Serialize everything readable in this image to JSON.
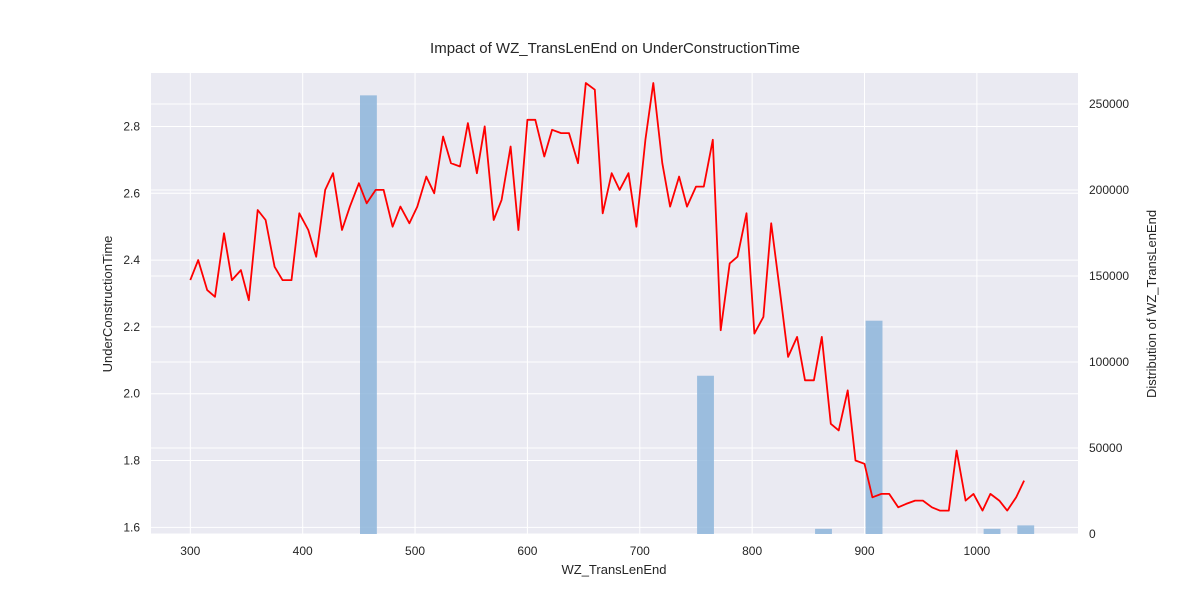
{
  "chart_data": {
    "type": "line",
    "title": "Impact of WZ_TransLenEnd on UnderConstructionTime",
    "xlabel": "WZ_TransLenEnd",
    "ylabel": "UnderConstructionTime",
    "y2label": "Distribution of WZ_TransLenEnd",
    "xlim": [
      265,
      1090
    ],
    "ylim": [
      1.58,
      2.96
    ],
    "y2lim": [
      0,
      268000
    ],
    "x_ticks": [
      300,
      400,
      500,
      600,
      700,
      800,
      900,
      1000
    ],
    "y_ticks": [
      1.6,
      1.8,
      2.0,
      2.2,
      2.4,
      2.6,
      2.8
    ],
    "y_tick_labels": [
      "1.6",
      "1.8",
      "2.0",
      "2.2",
      "2.4",
      "2.6",
      "2.8"
    ],
    "y2_ticks": [
      0,
      50000,
      100000,
      150000,
      200000,
      250000
    ],
    "grid": true,
    "line_color": "#ff0000",
    "bar_color": "#8db5da",
    "background_color": "#eaeaf2",
    "series": [
      {
        "type": "line",
        "x": [
          300,
          307,
          315,
          322,
          330,
          337,
          345,
          352,
          360,
          367,
          375,
          382,
          390,
          397,
          405,
          412,
          420,
          427,
          435,
          442,
          450,
          457,
          465,
          472,
          480,
          487,
          495,
          502,
          510,
          517,
          525,
          532,
          540,
          547,
          555,
          562,
          570,
          577,
          585,
          592,
          600,
          607,
          615,
          622,
          630,
          637,
          645,
          652,
          660,
          667,
          675,
          682,
          690,
          697,
          705,
          712,
          720,
          727,
          735,
          742,
          750,
          757,
          765,
          772,
          780,
          787,
          795,
          802,
          810,
          817,
          825,
          832,
          840,
          847,
          855,
          862,
          870,
          877,
          885,
          892,
          900,
          907,
          915,
          922,
          930,
          937,
          945,
          952,
          960,
          967,
          975,
          982,
          990,
          997,
          1005,
          1012,
          1020,
          1027,
          1035,
          1042
        ],
        "values": [
          2.34,
          2.4,
          2.31,
          2.29,
          2.48,
          2.34,
          2.37,
          2.28,
          2.55,
          2.52,
          2.38,
          2.34,
          2.34,
          2.54,
          2.49,
          2.41,
          2.61,
          2.66,
          2.49,
          2.56,
          2.63,
          2.57,
          2.61,
          2.61,
          2.5,
          2.56,
          2.51,
          2.56,
          2.65,
          2.6,
          2.77,
          2.69,
          2.68,
          2.81,
          2.66,
          2.8,
          2.52,
          2.58,
          2.74,
          2.49,
          2.82,
          2.82,
          2.71,
          2.79,
          2.78,
          2.78,
          2.69,
          2.93,
          2.91,
          2.54,
          2.66,
          2.61,
          2.66,
          2.5,
          2.76,
          2.93,
          2.69,
          2.56,
          2.65,
          2.56,
          2.62,
          2.62,
          2.76,
          2.19,
          2.39,
          2.41,
          2.54,
          2.18,
          2.23,
          2.51,
          2.3,
          2.11,
          2.17,
          2.04,
          2.04,
          2.17,
          1.91,
          1.89,
          2.01,
          1.8,
          1.79,
          1.69,
          1.7,
          1.7,
          1.66,
          1.67,
          1.68,
          1.68,
          1.66,
          1.65,
          1.65,
          1.83,
          1.68,
          1.7,
          1.65,
          1.7,
          1.68,
          1.65,
          1.69,
          1.74
        ]
      },
      {
        "type": "bar",
        "axis": "secondary",
        "bins": [
          [
            451,
            466,
            255000
          ],
          [
            751,
            766,
            92000
          ],
          [
            856,
            871,
            3000
          ],
          [
            901,
            916,
            124000
          ],
          [
            1006,
            1021,
            3000
          ],
          [
            1036,
            1051,
            5000
          ]
        ]
      }
    ]
  }
}
